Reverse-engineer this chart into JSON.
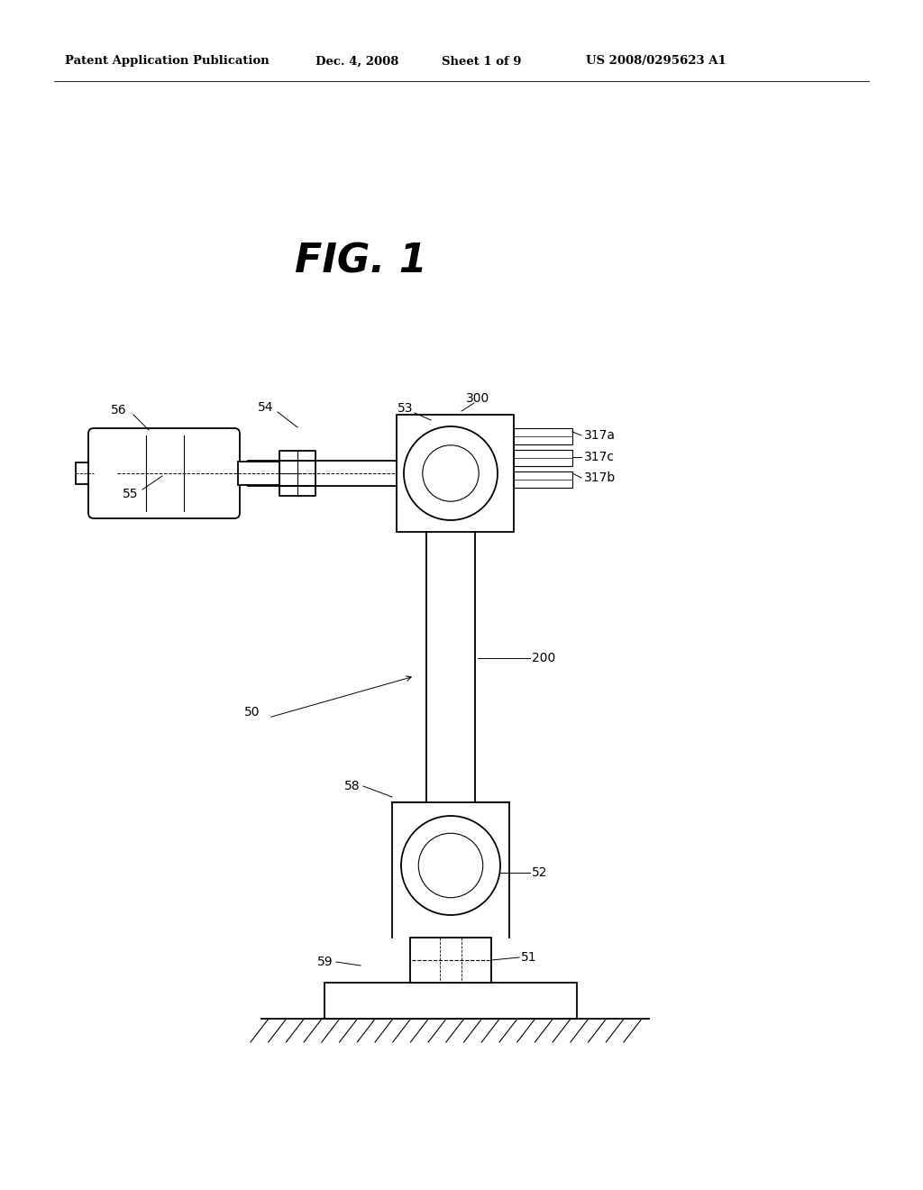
{
  "bg_color": "#ffffff",
  "header_text": "Patent Application Publication",
  "header_date": "Dec. 4, 2008",
  "header_sheet": "Sheet 1 of 9",
  "header_patent": "US 2008/0295623 A1",
  "fig_title": "FIG. 1",
  "line_color": "#000000",
  "lw": 1.3,
  "lw_thin": 0.8,
  "lw_ref": 0.7,
  "label_fs": 10
}
